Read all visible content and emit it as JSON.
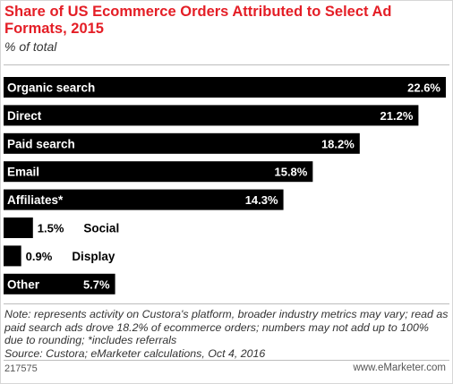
{
  "header": {
    "title": "Share of US Ecommerce Orders Attributed to Select Ad Formats, 2015",
    "subtitle": "% of total"
  },
  "chart_data": {
    "type": "bar",
    "orientation": "horizontal",
    "title": "Share of US Ecommerce Orders Attributed to Select Ad Formats, 2015",
    "subtitle": "% of total",
    "categories": [
      "Organic search",
      "Direct",
      "Paid search",
      "Email",
      "Affiliates*",
      "Social",
      "Display",
      "Other"
    ],
    "values": [
      22.6,
      21.2,
      18.2,
      15.8,
      14.3,
      1.5,
      0.9,
      5.7
    ],
    "value_labels": [
      "22.6%",
      "21.2%",
      "18.2%",
      "15.8%",
      "14.3%",
      "1.5%",
      "0.9%",
      "5.7%"
    ],
    "bar_color": "#000000",
    "label_color_inside": "#ffffff",
    "label_color_outside": "#000000",
    "grid": false,
    "legend": "none"
  },
  "footer": {
    "note": "Note: represents activity on Custora's platform, broader industry metrics may vary; read as paid search ads drove 18.2% of ecommerce orders; numbers may not add up to 100% due to rounding; *includes referrals",
    "source": "Source: Custora; eMarketer calculations, Oct 4, 2016",
    "chart_id": "217575",
    "brand": "www.eMarketer.com"
  }
}
